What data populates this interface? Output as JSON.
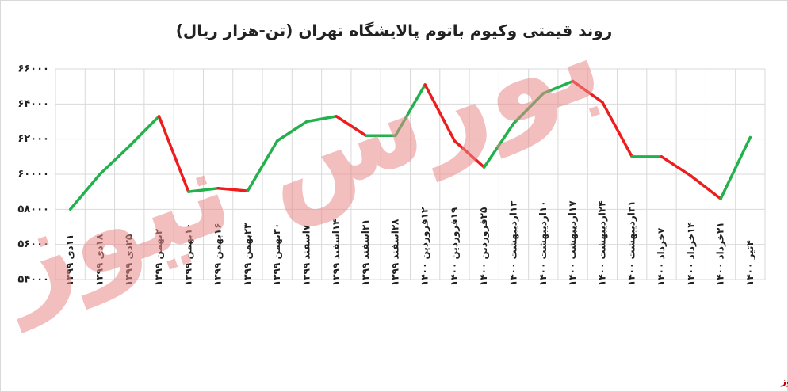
{
  "chart_data": {
    "type": "line",
    "title": "روند قیمتی وکیوم باتوم پالایشگاه تهران (تن-هزار ریال)",
    "watermark": "بورس نیوز",
    "source": "بورس نیوز",
    "categories": [
      "۱۱دی ۱۳۹۹",
      "۱۸دی ۱۳۹۹",
      "۲۵دی ۱۳۹۹",
      "۲بهمن ۱۳۹۹",
      "۱۰بهمن ۱۳۹۹",
      "۱۶بهمن ۱۳۹۹",
      "۲۳بهمن ۱۳۹۹",
      "۳۰بهمن ۱۳۹۹",
      "۷اسفند ۱۳۹۹",
      "۱۴اسفند ۱۳۹۹",
      "۲۱اسفند ۱۳۹۹",
      "۲۸اسفند ۱۳۹۹",
      "۱۲فروردین ۱۴۰۰",
      "۱۹فروردین ۱۴۰۰",
      "۲۵فروردین ۱۴۰۰",
      "۱۳اردیبهشت ۱۴۰۰",
      "۱۰اردیبهشت ۱۴۰۰",
      "۱۷اردیبهشت ۱۴۰۰",
      "۲۴اردیبهشت ۱۴۰۰",
      "۳۱اردیبهشت ۱۴۰۰",
      "۷خرداد ۱۴۰۰",
      "۱۴خرداد ۱۴۰۰",
      "۲۱خرداد ۱۴۰۰",
      "۴تیر ۱۴۰۰"
    ],
    "values": [
      58000,
      60000,
      61600,
      63300,
      59000,
      59200,
      59050,
      61900,
      63000,
      63300,
      62200,
      62200,
      65100,
      61900,
      60400,
      62900,
      64600,
      65300,
      64100,
      61000,
      61000,
      59900,
      58600,
      62100
    ],
    "up_color": "#22b14c",
    "down_color": "#ee1c1c",
    "ylim": [
      54000,
      66000
    ],
    "yticks": [
      {
        "value": 54000,
        "label": "۵۴۰۰۰"
      },
      {
        "value": 56000,
        "label": "۵۶۰۰۰"
      },
      {
        "value": 58000,
        "label": "۵۸۰۰۰"
      },
      {
        "value": 60000,
        "label": "۶۰۰۰۰"
      },
      {
        "value": 62000,
        "label": "۶۲۰۰۰"
      },
      {
        "value": 64000,
        "label": "۶۴۰۰۰"
      },
      {
        "value": 66000,
        "label": "۶۶۰۰۰"
      }
    ],
    "grid": true
  }
}
